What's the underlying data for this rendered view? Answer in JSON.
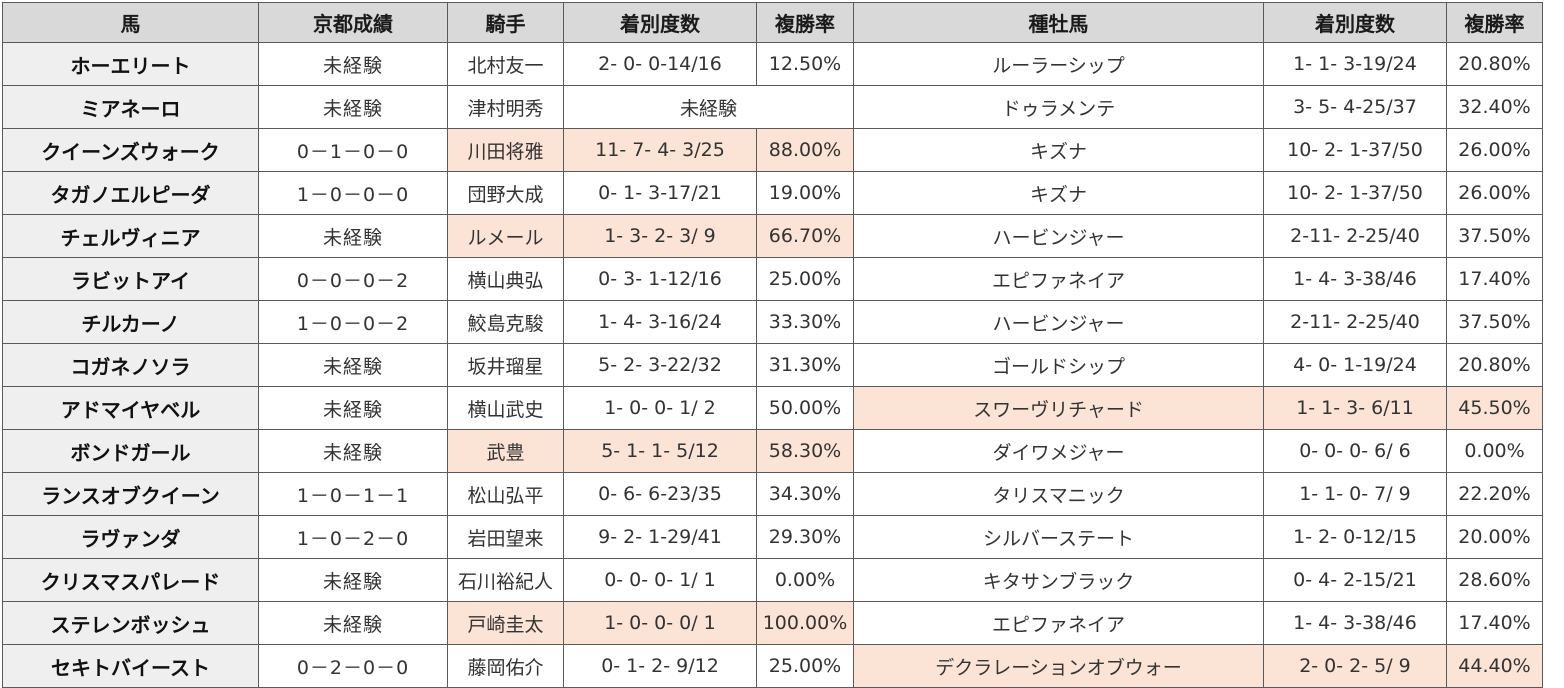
{
  "colors": {
    "header_bg": "#d9d9d9",
    "horse_name_bg": "#efefef",
    "highlight_bg": "#fbe3d6",
    "border": "#5a5a5a"
  },
  "headers": [
    "馬",
    "京都成績",
    "騎手",
    "着別度数",
    "複勝率",
    "種牡馬",
    "着別度数",
    "複勝率"
  ],
  "rows": [
    {
      "horse": "ホーエリート",
      "kyoto": "未経験",
      "jockey": "北村友一",
      "jockey_record": "2- 0- 0-14/16",
      "jockey_rate": "12.50%",
      "sire": "ルーラーシップ",
      "sire_record": "1- 1- 3-19/24",
      "sire_rate": "20.80%"
    },
    {
      "horse": "ミアネーロ",
      "kyoto": "未経験",
      "jockey": "津村明秀",
      "jockey_merged": "未経験",
      "sire": "ドゥラメンテ",
      "sire_record": "3- 5- 4-25/37",
      "sire_rate": "32.40%"
    },
    {
      "horse": "クイーンズウォーク",
      "kyoto": "0－1－0－0",
      "jockey": "川田将雅",
      "jockey_record": "11- 7- 4- 3/25",
      "jockey_rate": "88.00%",
      "sire": "キズナ",
      "sire_record": "10- 2- 1-37/50",
      "sire_rate": "26.00%"
    },
    {
      "horse": "タガノエルピーダ",
      "kyoto": "1－0－0－0",
      "jockey": "団野大成",
      "jockey_record": "0- 1- 3-17/21",
      "jockey_rate": "19.00%",
      "sire": "キズナ",
      "sire_record": "10- 2- 1-37/50",
      "sire_rate": "26.00%"
    },
    {
      "horse": "チェルヴィニア",
      "kyoto": "未経験",
      "jockey": "ルメール",
      "jockey_record": "1- 3- 2- 3/ 9",
      "jockey_rate": "66.70%",
      "sire": "ハービンジャー",
      "sire_record": "2-11- 2-25/40",
      "sire_rate": "37.50%"
    },
    {
      "horse": "ラビットアイ",
      "kyoto": "0－0－0－2",
      "jockey": "横山典弘",
      "jockey_record": "0- 3- 1-12/16",
      "jockey_rate": "25.00%",
      "sire": "エピファネイア",
      "sire_record": "1- 4- 3-38/46",
      "sire_rate": "17.40%"
    },
    {
      "horse": "チルカーノ",
      "kyoto": "1－0－0－2",
      "jockey": "鮫島克駿",
      "jockey_record": "1- 4- 3-16/24",
      "jockey_rate": "33.30%",
      "sire": "ハービンジャー",
      "sire_record": "2-11- 2-25/40",
      "sire_rate": "37.50%"
    },
    {
      "horse": "コガネノソラ",
      "kyoto": "未経験",
      "jockey": "坂井瑠星",
      "jockey_record": "5- 2- 3-22/32",
      "jockey_rate": "31.30%",
      "sire": "ゴールドシップ",
      "sire_record": "4- 0- 1-19/24",
      "sire_rate": "20.80%"
    },
    {
      "horse": "アドマイヤベル",
      "kyoto": "未経験",
      "jockey": "横山武史",
      "jockey_record": "1- 0- 0- 1/ 2",
      "jockey_rate": "50.00%",
      "sire": "スワーヴリチャード",
      "sire_record": "1- 1- 3- 6/11",
      "sire_rate": "45.50%"
    },
    {
      "horse": "ボンドガール",
      "kyoto": "未経験",
      "jockey": "武豊",
      "jockey_record": "5- 1- 1- 5/12",
      "jockey_rate": "58.30%",
      "sire": "ダイワメジャー",
      "sire_record": "0- 0- 0- 6/ 6",
      "sire_rate": "0.00%"
    },
    {
      "horse": "ランスオブクイーン",
      "kyoto": "1－0－1－1",
      "jockey": "松山弘平",
      "jockey_record": "0- 6- 6-23/35",
      "jockey_rate": "34.30%",
      "sire": "タリスマニック",
      "sire_record": "1- 1- 0- 7/ 9",
      "sire_rate": "22.20%"
    },
    {
      "horse": "ラヴァンダ",
      "kyoto": "1－0－2－0",
      "jockey": "岩田望来",
      "jockey_record": "9- 2- 1-29/41",
      "jockey_rate": "29.30%",
      "sire": "シルバーステート",
      "sire_record": "1- 2- 0-12/15",
      "sire_rate": "20.00%"
    },
    {
      "horse": "クリスマスパレード",
      "kyoto": "未経験",
      "jockey": "石川裕紀人",
      "jockey_record": "0- 0- 0- 1/ 1",
      "jockey_rate": "0.00%",
      "sire": "キタサンブラック",
      "sire_record": "0- 4- 2-15/21",
      "sire_rate": "28.60%"
    },
    {
      "horse": "ステレンボッシュ",
      "kyoto": "未経験",
      "jockey": "戸崎圭太",
      "jockey_record": "1- 0- 0- 0/ 1",
      "jockey_rate": "100.00%",
      "sire": "エピファネイア",
      "sire_record": "1- 4- 3-38/46",
      "sire_rate": "17.40%"
    },
    {
      "horse": "セキトバイースト",
      "kyoto": "0－2－0－0",
      "jockey": "藤岡佑介",
      "jockey_record": "0- 1- 2- 9/12",
      "jockey_rate": "25.00%",
      "sire": "デクラレーションオブウォー",
      "sire_record": "2- 0- 2- 5/ 9",
      "sire_rate": "44.40%"
    }
  ]
}
